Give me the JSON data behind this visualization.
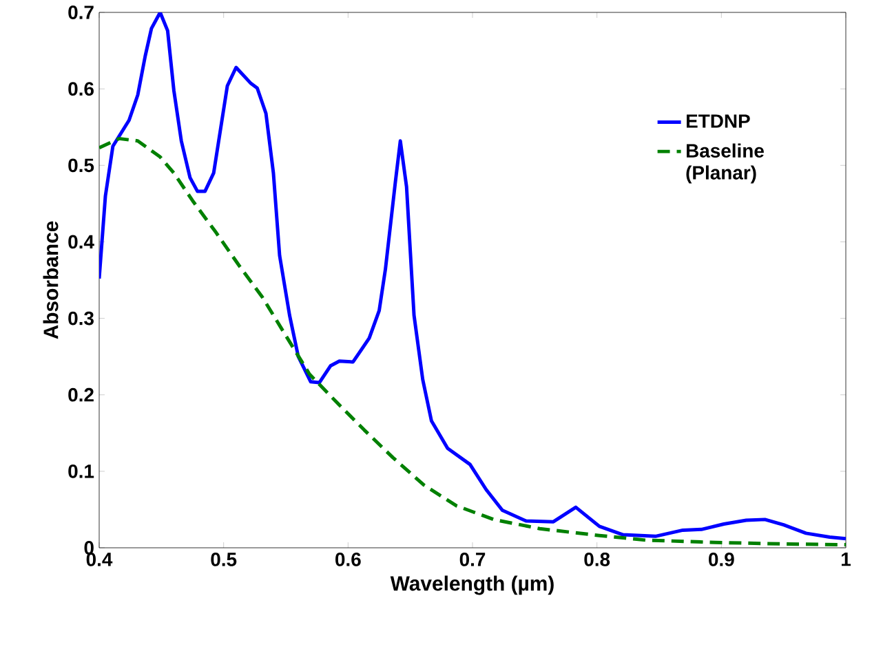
{
  "chart_data": {
    "type": "line",
    "xlabel": "Wavelength (µm)",
    "ylabel": "Absorbance",
    "xlim": [
      0.4,
      1.0
    ],
    "ylim": [
      0,
      0.7
    ],
    "xticks": [
      0.4,
      0.5,
      0.6,
      0.7,
      0.8,
      0.9,
      1
    ],
    "yticks": [
      0,
      0.1,
      0.2,
      0.3,
      0.4,
      0.5,
      0.6,
      0.7
    ],
    "grid": false,
    "legend": "top right",
    "marker": "none",
    "series": [
      {
        "name": "ETDNP",
        "color": "#0000ff",
        "line_style": "solid",
        "x": [
          0.4,
          0.405,
          0.411,
          0.424,
          0.431,
          0.437,
          0.442,
          0.449,
          0.455,
          0.46,
          0.466,
          0.473,
          0.479,
          0.485,
          0.492,
          0.503,
          0.51,
          0.522,
          0.527,
          0.534,
          0.54,
          0.545,
          0.553,
          0.56,
          0.57,
          0.577,
          0.586,
          0.593,
          0.604,
          0.617,
          0.625,
          0.63,
          0.638,
          0.642,
          0.647,
          0.653,
          0.66,
          0.667,
          0.68,
          0.698,
          0.711,
          0.724,
          0.743,
          0.765,
          0.783,
          0.802,
          0.821,
          0.847,
          0.869,
          0.884,
          0.902,
          0.92,
          0.935,
          0.95,
          0.968,
          0.987,
          1.0
        ],
        "values": [
          0.352,
          0.46,
          0.525,
          0.559,
          0.592,
          0.643,
          0.679,
          0.7,
          0.676,
          0.598,
          0.532,
          0.484,
          0.466,
          0.466,
          0.49,
          0.604,
          0.628,
          0.607,
          0.601,
          0.568,
          0.49,
          0.382,
          0.304,
          0.25,
          0.217,
          0.216,
          0.238,
          0.244,
          0.243,
          0.274,
          0.31,
          0.364,
          0.478,
          0.532,
          0.472,
          0.304,
          0.22,
          0.166,
          0.13,
          0.109,
          0.076,
          0.049,
          0.035,
          0.034,
          0.053,
          0.028,
          0.017,
          0.015,
          0.023,
          0.024,
          0.031,
          0.036,
          0.037,
          0.03,
          0.019,
          0.014,
          0.012
        ]
      },
      {
        "name": "Baseline (Planar)",
        "color": "#008000",
        "line_style": "dashed",
        "x": [
          0.4,
          0.416,
          0.431,
          0.449,
          0.46,
          0.475,
          0.494,
          0.512,
          0.531,
          0.549,
          0.569,
          0.591,
          0.613,
          0.636,
          0.661,
          0.687,
          0.717,
          0.754,
          0.802,
          0.839,
          0.895,
          0.95,
          1.0
        ],
        "values": [
          0.523,
          0.535,
          0.532,
          0.511,
          0.49,
          0.454,
          0.412,
          0.37,
          0.328,
          0.28,
          0.227,
          0.19,
          0.154,
          0.118,
          0.082,
          0.055,
          0.037,
          0.025,
          0.016,
          0.01,
          0.007,
          0.005,
          0.004
        ]
      }
    ]
  }
}
